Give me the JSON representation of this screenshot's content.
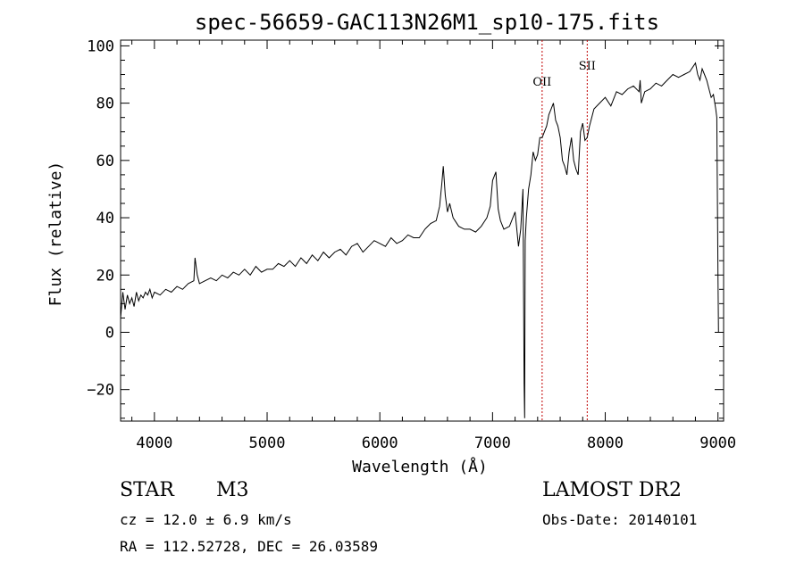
{
  "chart_data": {
    "type": "line",
    "title": "spec-56659-GAC113N26M1_sp10-175.fits",
    "xlabel": "Wavelength (Å)",
    "ylabel": "Flux (relative)",
    "xlim": [
      3700,
      9050
    ],
    "ylim": [
      -31,
      102
    ],
    "xticks": [
      4000,
      5000,
      6000,
      7000,
      8000,
      9000
    ],
    "yticks": [
      -20,
      0,
      20,
      40,
      60,
      80,
      100
    ],
    "xtick_labels": [
      "4000",
      "5000",
      "6000",
      "7000",
      "8000",
      "9000"
    ],
    "ytick_labels": [
      "−20",
      "0",
      "20",
      "40",
      "60",
      "80",
      "100"
    ],
    "grid": false,
    "lines": [
      {
        "label": "OII",
        "x": 7440
      },
      {
        "label": "SII",
        "x": 7840
      }
    ],
    "series": [
      {
        "x": [
          3700,
          3720,
          3740,
          3760,
          3780,
          3800,
          3820,
          3840,
          3860,
          3880,
          3900,
          3920,
          3940,
          3960,
          3980,
          4000,
          4050,
          4100,
          4150,
          4200,
          4250,
          4300,
          4350,
          4360,
          4380,
          4400,
          4450,
          4500,
          4550,
          4600,
          4650,
          4700,
          4750,
          4800,
          4850,
          4900,
          4950,
          5000,
          5050,
          5100,
          5150,
          5200,
          5250,
          5300,
          5350,
          5400,
          5450,
          5500,
          5550,
          5600,
          5650,
          5700,
          5750,
          5800,
          5850,
          5900,
          5950,
          6000,
          6050,
          6100,
          6150,
          6200,
          6250,
          6300,
          6350,
          6400,
          6450,
          6500,
          6530,
          6550,
          6563,
          6580,
          6600,
          6620,
          6650,
          6700,
          6750,
          6800,
          6850,
          6900,
          6950,
          6980,
          7000,
          7030,
          7050,
          7070,
          7100,
          7150,
          7200,
          7230,
          7250,
          7270,
          7280,
          7285,
          7290,
          7300,
          7320,
          7340,
          7360,
          7380,
          7400,
          7420,
          7440,
          7460,
          7480,
          7500,
          7520,
          7540,
          7560,
          7580,
          7600,
          7620,
          7640,
          7660,
          7680,
          7700,
          7720,
          7740,
          7760,
          7780,
          7800,
          7820,
          7840,
          7860,
          7880,
          7900,
          7950,
          8000,
          8050,
          8100,
          8150,
          8200,
          8250,
          8300,
          8310,
          8320,
          8350,
          8400,
          8450,
          8500,
          8550,
          8600,
          8650,
          8700,
          8750,
          8800,
          8820,
          8840,
          8860,
          8880,
          8900,
          8920,
          8940,
          8960,
          8980,
          8990,
          9000,
          9005
        ],
        "y": [
          5,
          14,
          8,
          13,
          10,
          12,
          9,
          14,
          11,
          13,
          12,
          14,
          13,
          15,
          12,
          14,
          13,
          15,
          14,
          16,
          15,
          17,
          18,
          26,
          20,
          17,
          18,
          19,
          18,
          20,
          19,
          21,
          20,
          22,
          20,
          23,
          21,
          22,
          22,
          24,
          23,
          25,
          23,
          26,
          24,
          27,
          25,
          28,
          26,
          28,
          29,
          27,
          30,
          31,
          28,
          30,
          32,
          31,
          30,
          33,
          31,
          32,
          34,
          33,
          33,
          36,
          38,
          39,
          44,
          52,
          58,
          48,
          42,
          45,
          40,
          37,
          36,
          36,
          35,
          37,
          40,
          44,
          53,
          56,
          43,
          39,
          36,
          37,
          42,
          30,
          36,
          50,
          -18,
          -30,
          32,
          40,
          50,
          55,
          63,
          60,
          62,
          68,
          68,
          70,
          72,
          76,
          78,
          80,
          74,
          72,
          68,
          60,
          58,
          55,
          63,
          68,
          60,
          57,
          55,
          70,
          73,
          67,
          68,
          72,
          75,
          78,
          80,
          82,
          79,
          84,
          83,
          85,
          86,
          84,
          88,
          80,
          84,
          85,
          87,
          86,
          88,
          90,
          89,
          90,
          91,
          94,
          90,
          88,
          92,
          90,
          88,
          85,
          82,
          83,
          78,
          75,
          20,
          0
        ]
      }
    ]
  },
  "footer": {
    "class_label": "STAR",
    "subclass": "M3",
    "survey": "LAMOST DR2",
    "cz": "cz = 12.0 ± 6.9 km/s",
    "obs_date": "Obs-Date: 20140101",
    "coords": "RA = 112.52728, DEC =  26.03589"
  }
}
